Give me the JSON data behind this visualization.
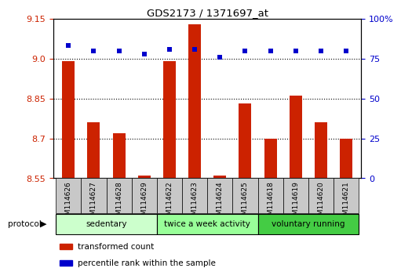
{
  "title": "GDS2173 / 1371697_at",
  "samples": [
    "GSM114626",
    "GSM114627",
    "GSM114628",
    "GSM114629",
    "GSM114622",
    "GSM114623",
    "GSM114624",
    "GSM114625",
    "GSM114618",
    "GSM114619",
    "GSM114620",
    "GSM114621"
  ],
  "transformed_count": [
    8.99,
    8.76,
    8.72,
    8.56,
    8.99,
    9.13,
    8.56,
    8.83,
    8.7,
    8.86,
    8.76,
    8.7
  ],
  "percentile_rank": [
    83,
    80,
    80,
    78,
    81,
    81,
    76,
    80,
    80,
    80,
    80,
    80
  ],
  "ylim_left": [
    8.55,
    9.15
  ],
  "ylim_right": [
    0,
    100
  ],
  "yticks_left": [
    8.55,
    8.7,
    8.85,
    9.0,
    9.15
  ],
  "yticks_right": [
    0,
    25,
    50,
    75,
    100
  ],
  "ytick_right_labels": [
    "0",
    "25",
    "50",
    "75",
    "100%"
  ],
  "groups": [
    {
      "label": "sedentary",
      "indices": [
        0,
        1,
        2,
        3
      ],
      "color": "#ccffcc"
    },
    {
      "label": "twice a week activity",
      "indices": [
        4,
        5,
        6,
        7
      ],
      "color": "#99ff99"
    },
    {
      "label": "voluntary running",
      "indices": [
        8,
        9,
        10,
        11
      ],
      "color": "#44cc44"
    }
  ],
  "bar_color": "#cc2200",
  "dot_color": "#0000cc",
  "bar_bottom": 8.55,
  "grid_yticks": [
    8.7,
    8.85,
    9.0
  ],
  "legend_items": [
    {
      "label": "transformed count",
      "color": "#cc2200"
    },
    {
      "label": "percentile rank within the sample",
      "color": "#0000cc"
    }
  ],
  "protocol_label": "protocol",
  "ticklabel_bg_color": "#c8c8c8",
  "bar_width": 0.5
}
